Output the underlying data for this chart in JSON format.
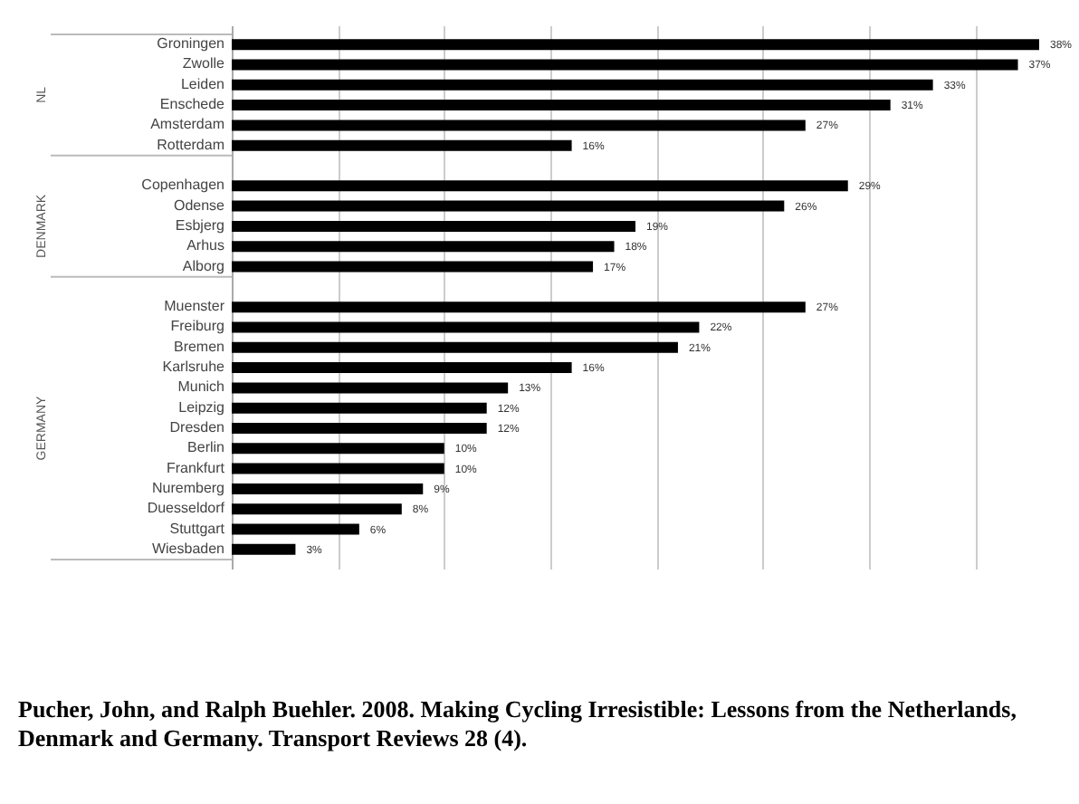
{
  "chart_data": {
    "type": "bar",
    "orientation": "horizontal",
    "categories": [
      "Groningen",
      "Zwolle",
      "Leiden",
      "Enschede",
      "Amsterdam",
      "Rotterdam",
      null,
      "Copenhagen",
      "Odense",
      "Esbjerg",
      "Arhus",
      "Alborg",
      null,
      "Muenster",
      "Freiburg",
      "Bremen",
      "Karlsruhe",
      "Munich",
      "Leipzig",
      "Dresden",
      "Berlin",
      "Frankfurt",
      "Nuremberg",
      "Duesseldorf",
      "Stuttgart",
      "Wiesbaden"
    ],
    "values": [
      38,
      37,
      33,
      31,
      27,
      16,
      null,
      29,
      26,
      19,
      18,
      17,
      null,
      27,
      22,
      21,
      16,
      13,
      12,
      12,
      10,
      10,
      9,
      8,
      6,
      3
    ],
    "value_labels": [
      "38%",
      "37%",
      "33%",
      "31%",
      "27%",
      "16%",
      null,
      "29%",
      "26%",
      "19%",
      "18%",
      "17%",
      null,
      "27%",
      "22%",
      "21%",
      "16%",
      "13%",
      "12%",
      "12%",
      "10%",
      "10%",
      "9%",
      "8%",
      "6%",
      "3%"
    ],
    "color": "#000000",
    "xticks": [
      {
        "value": 0,
        "label": null
      },
      {
        "value": 5,
        "label": null
      },
      {
        "value": 10,
        "label": null
      },
      {
        "value": 15,
        "label": null
      },
      {
        "value": 20,
        "label": null
      },
      {
        "value": 25,
        "label": null
      },
      {
        "value": 30,
        "label": null
      },
      {
        "value": 35,
        "label": null
      }
    ],
    "grid": "x",
    "tick_labels": "y",
    "annotations": [
      "NL",
      "DENMARK",
      "GERMANY",
      "Pucher, John, and Ralph Buehler. 2008. Making Cycling Irresistible: Lessons from the Netherlands, Denmark and Germany. Transport Reviews 28 (4)."
    ]
  }
}
